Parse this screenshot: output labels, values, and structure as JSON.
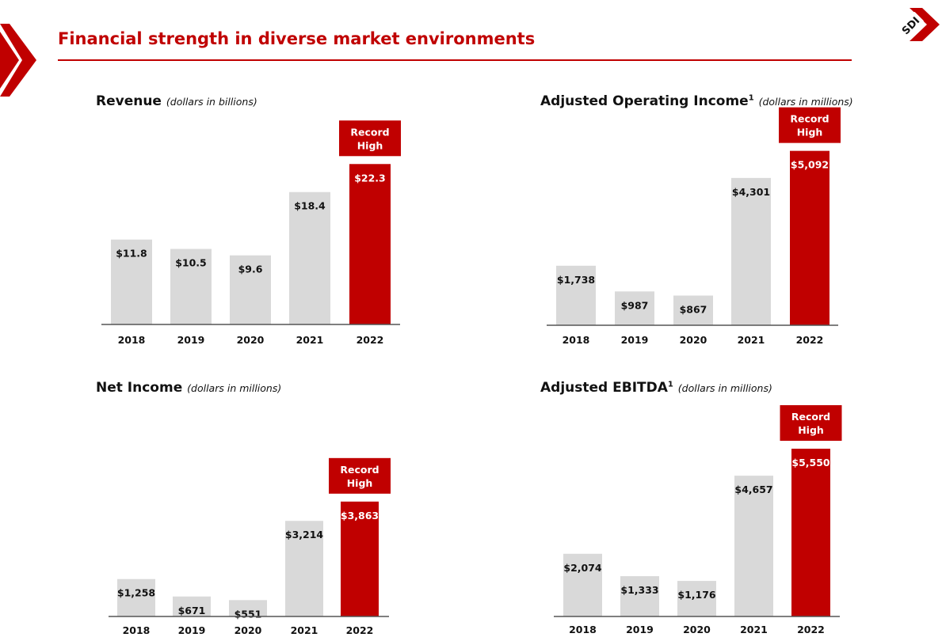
{
  "header": {
    "title": "Financial strength in diverse market environments",
    "logo_text": "SDI"
  },
  "colors": {
    "accent": "#c00000",
    "bar_default": "#d9d9d9",
    "bar_highlight": "#c00000",
    "axis": "#555555"
  },
  "icons": {
    "left_marker": "chevron-right-icon",
    "logo": "sdi-logo-icon"
  },
  "chart_data": [
    {
      "type": "bar",
      "title": "Revenue",
      "unit": "(dollars in billions)",
      "categories": [
        "2018",
        "2019",
        "2020",
        "2021",
        "2022"
      ],
      "values": [
        11.8,
        10.5,
        9.6,
        18.4,
        22.3
      ],
      "labels": [
        "$11.8",
        "$10.5",
        "$9.6",
        "$18.4",
        "$22.3"
      ],
      "highlight_index": 4,
      "callout": "Record High",
      "ylim": [
        0,
        25.3
      ]
    },
    {
      "type": "bar",
      "title": "Adjusted Operating Income",
      "footnote": "1",
      "unit": "(dollars in millions)",
      "categories": [
        "2018",
        "2019",
        "2020",
        "2021",
        "2022"
      ],
      "values": [
        1738,
        987,
        867,
        4301,
        5092
      ],
      "labels": [
        "$1,738",
        "$987",
        "$867",
        "$4,301",
        "$5,092"
      ],
      "highlight_index": 4,
      "callout": "Record High",
      "ylim": [
        0,
        5800
      ]
    },
    {
      "type": "bar",
      "title": "Net Income",
      "unit": "(dollars in millions)",
      "categories": [
        "2018",
        "2019",
        "2020",
        "2021",
        "2022"
      ],
      "values": [
        1258,
        671,
        551,
        3214,
        3863
      ],
      "labels": [
        "$1,258",
        "$671",
        "$551",
        "$3,214",
        "$3,863"
      ],
      "highlight_index": 4,
      "callout": "Record High",
      "ylim": [
        0,
        6200
      ]
    },
    {
      "type": "bar",
      "title": "Adjusted EBITDA",
      "footnote": "1",
      "unit": "(dollars in millions)",
      "categories": [
        "2018",
        "2019",
        "2020",
        "2021",
        "2022"
      ],
      "values": [
        2074,
        1333,
        1176,
        4657,
        5550
      ],
      "labels": [
        "$2,074",
        "$1,333",
        "$1,176",
        "$4,657",
        "$5,550"
      ],
      "highlight_index": 4,
      "callout": "Record High",
      "ylim": [
        0,
        6100
      ]
    }
  ]
}
